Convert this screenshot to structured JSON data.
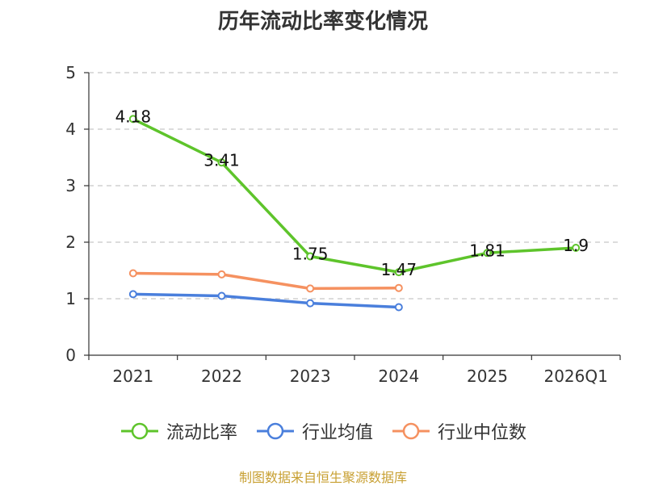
{
  "chart_data": {
    "type": "line",
    "title": "历年流动比率变化情况",
    "categories": [
      "2021",
      "2022",
      "2023",
      "2024",
      "2025",
      "2026Q1"
    ],
    "ylim": [
      0,
      5
    ],
    "yticks": [
      0,
      1,
      2,
      3,
      4,
      5
    ],
    "grid": true,
    "legend_position": "bottom",
    "series": [
      {
        "name": "流动比率",
        "color": "#5ec42b",
        "values": [
          4.18,
          3.41,
          1.75,
          1.47,
          1.81,
          1.9
        ],
        "labels": [
          "4.18",
          "3.41",
          "1.75",
          "1.47",
          "1.81",
          "1.9"
        ],
        "show_labels": true
      },
      {
        "name": "行业均值",
        "color": "#4a7fdc",
        "values": [
          1.08,
          1.05,
          0.92,
          0.85,
          null,
          null
        ],
        "show_labels": false
      },
      {
        "name": "行业中位数",
        "color": "#f59160",
        "values": [
          1.45,
          1.43,
          1.18,
          1.19,
          null,
          null
        ],
        "show_labels": false
      }
    ]
  },
  "source": "制图数据来自恒生聚源数据库"
}
